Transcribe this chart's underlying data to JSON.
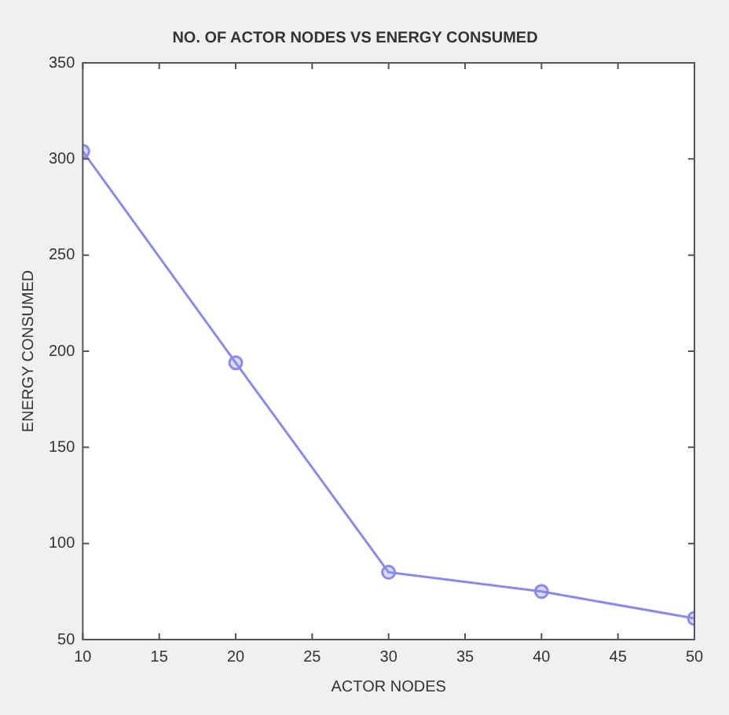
{
  "chart_data": {
    "type": "line",
    "title": "NO. OF ACTOR NODES VS ENERGY CONSUMED",
    "xlabel": "ACTOR NODES",
    "ylabel": "ENERGY CONSUMED",
    "x": [
      10,
      20,
      30,
      40,
      50
    ],
    "series": [
      {
        "color": "#8a8aee",
        "values": [
          304,
          194,
          85,
          75,
          61
        ]
      }
    ],
    "xlim": [
      10,
      50
    ],
    "xticks": [
      10,
      15,
      20,
      25,
      30,
      35,
      40,
      45,
      50
    ],
    "ylim": [
      50,
      350
    ],
    "yticks": [
      50,
      100,
      150,
      200,
      250,
      300,
      350
    ],
    "grid": false,
    "legend": false,
    "marker": "circle",
    "line_style": "solid"
  }
}
